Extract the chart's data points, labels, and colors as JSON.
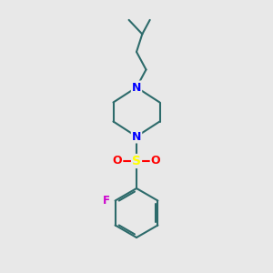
{
  "background_color": "#e8e8e8",
  "bond_color": "#2d6b6b",
  "N_color": "#0000ff",
  "S_color": "#ffff00",
  "O_color": "#ff0000",
  "F_color": "#cc00cc",
  "line_width": 1.5,
  "figsize": [
    3.0,
    3.0
  ],
  "dpi": 100,
  "xlim": [
    2.5,
    7.5
  ],
  "ylim": [
    0.2,
    10.2
  ]
}
